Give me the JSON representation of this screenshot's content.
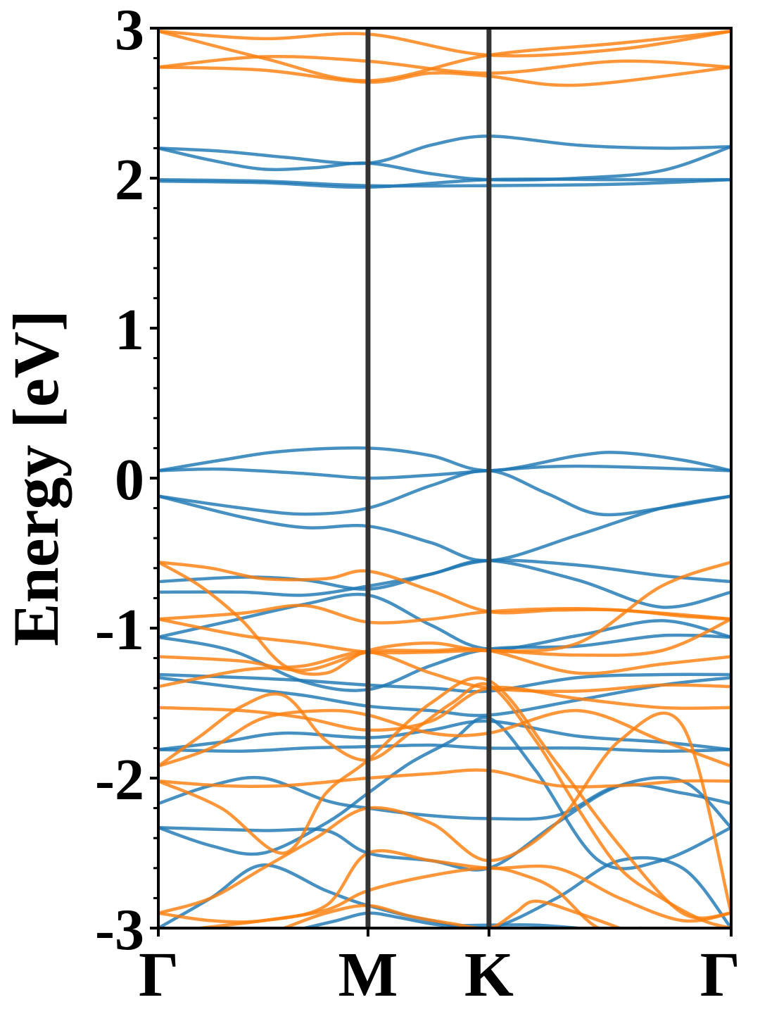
{
  "chart_data": {
    "type": "line",
    "title": "",
    "xlabel": "",
    "ylabel": "Energy [eV]",
    "ylim": [
      -3,
      3
    ],
    "y_ticks": [
      "-3",
      "-2",
      "-1",
      "0",
      "1",
      "2",
      "3"
    ],
    "y_tick_values": [
      -3,
      -2,
      -1,
      0,
      1,
      2,
      3
    ],
    "y_minor_step": 0.2,
    "x_ticks": [
      "Γ",
      "M",
      "K",
      "Γ"
    ],
    "x_tick_positions": [
      0,
      1,
      1.577,
      2.732
    ],
    "xlim": [
      0,
      2.732
    ],
    "grid": false,
    "legend": "none",
    "colors": {
      "spin_a": "#1f77b4",
      "spin_b": "#ff7f0e",
      "kline": "#333333"
    },
    "series": [
      {
        "color_key": "spin_a",
        "x": [
          0,
          0.3,
          0.6,
          1.0,
          1.3,
          1.577,
          2.0,
          2.4,
          2.732
        ],
        "y": [
          2.2,
          2.18,
          2.14,
          2.1,
          2.22,
          2.28,
          2.22,
          2.2,
          2.21
        ]
      },
      {
        "color_key": "spin_a",
        "x": [
          0,
          0.25,
          0.5,
          0.75,
          1.0,
          1.3,
          1.577,
          2.0,
          2.4,
          2.732
        ],
        "y": [
          2.2,
          2.12,
          2.06,
          2.07,
          2.1,
          2.03,
          1.99,
          2.0,
          2.05,
          2.21
        ]
      },
      {
        "color_key": "spin_a",
        "x": [
          0,
          0.5,
          1.0,
          1.577,
          2.2,
          2.732
        ],
        "y": [
          1.99,
          1.98,
          1.95,
          1.95,
          1.96,
          1.99
        ]
      },
      {
        "color_key": "spin_a",
        "x": [
          0,
          0.5,
          1.0,
          1.577,
          2.2,
          2.732
        ],
        "y": [
          1.98,
          1.97,
          1.94,
          1.99,
          1.99,
          1.99
        ]
      },
      {
        "color_key": "spin_a",
        "x": [
          0,
          0.3,
          0.6,
          1.0,
          1.3,
          1.577,
          2.0,
          2.2,
          2.5,
          2.732
        ],
        "y": [
          0.05,
          0.12,
          0.18,
          0.2,
          0.15,
          0.05,
          0.15,
          0.17,
          0.12,
          0.05
        ]
      },
      {
        "color_key": "spin_a",
        "x": [
          0,
          0.3,
          0.7,
          1.0,
          1.3,
          1.577,
          2.0,
          2.732
        ],
        "y": [
          0.05,
          0.06,
          0.03,
          0.0,
          0.02,
          0.05,
          0.08,
          0.05
        ]
      },
      {
        "color_key": "spin_a",
        "x": [
          0,
          0.4,
          0.7,
          1.0,
          1.3,
          1.577,
          1.85,
          2.1,
          2.4,
          2.732
        ],
        "y": [
          -0.12,
          -0.2,
          -0.24,
          -0.2,
          -0.05,
          0.05,
          -0.1,
          -0.24,
          -0.2,
          -0.12
        ]
      },
      {
        "color_key": "spin_a",
        "x": [
          0,
          0.4,
          0.7,
          1.0,
          1.3,
          1.577,
          2.0,
          2.4,
          2.732
        ],
        "y": [
          -0.12,
          -0.26,
          -0.33,
          -0.32,
          -0.43,
          -0.55,
          -0.38,
          -0.2,
          -0.12
        ]
      },
      {
        "color_key": "spin_a",
        "x": [
          0,
          0.4,
          0.7,
          1.0,
          1.3,
          1.577,
          2.0,
          2.4,
          2.732
        ],
        "y": [
          -0.69,
          -0.66,
          -0.68,
          -0.74,
          -0.64,
          -0.55,
          -0.58,
          -0.65,
          -0.69
        ]
      },
      {
        "color_key": "spin_a",
        "x": [
          0,
          0.4,
          0.7,
          1.0,
          1.3,
          1.577,
          2.0,
          2.4,
          2.732
        ],
        "y": [
          -0.76,
          -0.76,
          -0.78,
          -0.72,
          -0.64,
          -0.55,
          -0.68,
          -0.86,
          -0.76
        ]
      },
      {
        "color_key": "spin_a",
        "x": [
          0,
          0.35,
          0.7,
          1.0,
          1.3,
          1.577,
          2.0,
          2.4,
          2.732
        ],
        "y": [
          -1.06,
          -0.95,
          -0.84,
          -0.78,
          -0.98,
          -1.14,
          -1.05,
          -0.95,
          -1.06
        ]
      },
      {
        "color_key": "spin_a",
        "x": [
          0,
          0.35,
          0.7,
          1.0,
          1.3,
          1.577,
          2.0,
          2.4,
          2.732
        ],
        "y": [
          -1.06,
          -1.15,
          -1.36,
          -1.41,
          -1.25,
          -1.14,
          -1.12,
          -1.05,
          -1.06
        ]
      },
      {
        "color_key": "spin_a",
        "x": [
          0,
          0.4,
          0.7,
          1.0,
          1.3,
          1.577,
          2.0,
          2.4,
          2.732
        ],
        "y": [
          -1.31,
          -1.33,
          -1.35,
          -1.38,
          -1.4,
          -1.42,
          -1.33,
          -1.31,
          -1.31
        ]
      },
      {
        "color_key": "spin_a",
        "x": [
          0,
          0.4,
          0.7,
          1.0,
          1.3,
          1.577,
          2.0,
          2.4,
          2.732
        ],
        "y": [
          -1.33,
          -1.4,
          -1.45,
          -1.52,
          -1.55,
          -1.58,
          -1.48,
          -1.38,
          -1.33
        ]
      },
      {
        "color_key": "spin_a",
        "x": [
          0,
          0.3,
          0.6,
          1.0,
          1.3,
          1.577,
          2.0,
          2.4,
          2.732
        ],
        "y": [
          -1.81,
          -1.76,
          -1.7,
          -1.73,
          -1.68,
          -1.62,
          -1.72,
          -1.76,
          -1.81
        ]
      },
      {
        "color_key": "spin_a",
        "x": [
          0,
          0.4,
          0.7,
          1.0,
          1.3,
          1.577,
          2.0,
          2.4,
          2.732
        ],
        "y": [
          -1.81,
          -1.82,
          -1.8,
          -1.79,
          -1.78,
          -1.8,
          -1.8,
          -1.82,
          -1.81
        ]
      },
      {
        "color_key": "spin_a",
        "x": [
          0,
          0.25,
          0.5,
          0.8,
          1.0,
          1.3,
          1.577,
          1.9,
          2.2,
          2.5,
          2.732
        ],
        "y": [
          -2.17,
          -2.05,
          -2.0,
          -2.15,
          -2.2,
          -2.25,
          -2.27,
          -2.25,
          -2.05,
          -2.1,
          -2.17
        ]
      },
      {
        "color_key": "spin_a",
        "x": [
          0,
          0.5,
          0.8,
          1.0,
          1.3,
          1.577,
          1.9,
          2.2,
          2.5,
          2.732
        ],
        "y": [
          -2.33,
          -2.35,
          -2.35,
          -2.5,
          -2.55,
          -2.6,
          -2.3,
          -2.05,
          -2.02,
          -2.33
        ]
      },
      {
        "color_key": "spin_a",
        "x": [
          0,
          0.25,
          0.5,
          0.8,
          1.0,
          1.2,
          1.4,
          1.577,
          1.8,
          2.1,
          2.4,
          2.732
        ],
        "y": [
          -2.33,
          -2.45,
          -2.5,
          -2.3,
          -2.1,
          -1.9,
          -1.75,
          -1.6,
          -1.95,
          -2.55,
          -2.55,
          -2.33
        ]
      },
      {
        "color_key": "spin_a",
        "x": [
          0,
          0.25,
          0.5,
          0.8,
          1.0,
          1.3,
          1.577,
          1.9,
          2.2,
          2.5,
          2.732
        ],
        "y": [
          -3.0,
          -2.8,
          -2.58,
          -2.75,
          -2.85,
          -2.95,
          -3.0,
          -2.8,
          -2.55,
          -2.6,
          -3.0
        ]
      },
      {
        "color_key": "spin_a",
        "x": [
          0.7,
          0.85,
          1.0,
          1.15,
          1.35,
          1.577,
          1.8,
          2.0
        ],
        "y": [
          -3.0,
          -2.95,
          -2.9,
          -2.93,
          -2.98,
          -2.98,
          -2.98,
          -3.0
        ]
      },
      {
        "color_key": "spin_b",
        "x": [
          0,
          0.5,
          1.0,
          1.577,
          2.2,
          2.732
        ],
        "y": [
          2.98,
          2.93,
          2.96,
          2.82,
          2.86,
          2.98
        ]
      },
      {
        "color_key": "spin_b",
        "x": [
          0,
          0.5,
          1.0,
          1.577,
          2.2,
          2.732
        ],
        "y": [
          2.98,
          2.8,
          2.65,
          2.82,
          2.9,
          2.98
        ]
      },
      {
        "color_key": "spin_b",
        "x": [
          0,
          0.5,
          1.0,
          1.577,
          2.2,
          2.732
        ],
        "y": [
          2.74,
          2.81,
          2.78,
          2.7,
          2.78,
          2.74
        ]
      },
      {
        "color_key": "spin_b",
        "x": [
          0,
          0.5,
          1.0,
          1.3,
          1.577,
          2.0,
          2.732
        ],
        "y": [
          2.74,
          2.72,
          2.64,
          2.7,
          2.68,
          2.62,
          2.74
        ]
      },
      {
        "color_key": "spin_b",
        "x": [
          0,
          0.25,
          0.5,
          0.8,
          1.0,
          1.3,
          1.577,
          1.9,
          2.2,
          2.5,
          2.732
        ],
        "y": [
          -0.56,
          -0.6,
          -0.67,
          -0.67,
          -0.62,
          -0.75,
          -0.89,
          -0.88,
          -0.88,
          -0.92,
          -0.94
        ]
      },
      {
        "color_key": "spin_b",
        "x": [
          0,
          0.2,
          0.4,
          0.6,
          0.8,
          1.0,
          1.3,
          1.577,
          2.0,
          2.4,
          2.732
        ],
        "y": [
          -0.56,
          -0.72,
          -0.95,
          -1.25,
          -1.3,
          -1.15,
          -1.1,
          -1.15,
          -1.1,
          -0.72,
          -0.56
        ]
      },
      {
        "color_key": "spin_b",
        "x": [
          0,
          0.4,
          0.7,
          1.0,
          1.3,
          1.577,
          2.0,
          2.4,
          2.732
        ],
        "y": [
          -0.94,
          -0.9,
          -0.85,
          -0.96,
          -0.94,
          -0.89,
          -0.87,
          -0.9,
          -0.94
        ]
      },
      {
        "color_key": "spin_b",
        "x": [
          0,
          0.4,
          0.7,
          1.0,
          1.3,
          1.577,
          2.0,
          2.4,
          2.732
        ],
        "y": [
          -0.94,
          -1.05,
          -1.1,
          -1.16,
          -1.16,
          -1.15,
          -1.18,
          -1.15,
          -0.94
        ]
      },
      {
        "color_key": "spin_b",
        "x": [
          0,
          0.4,
          0.7,
          1.0,
          1.3,
          1.577,
          2.0,
          2.4,
          2.732
        ],
        "y": [
          -1.19,
          -1.22,
          -1.28,
          -1.16,
          -1.15,
          -1.15,
          -1.3,
          -1.24,
          -1.19
        ]
      },
      {
        "color_key": "spin_b",
        "x": [
          0,
          0.4,
          0.7,
          1.0,
          1.3,
          1.577,
          2.0,
          2.4,
          2.732
        ],
        "y": [
          -1.39,
          -1.28,
          -1.25,
          -1.16,
          -1.3,
          -1.4,
          -1.42,
          -1.38,
          -1.39
        ]
      },
      {
        "color_key": "spin_b",
        "x": [
          0,
          0.4,
          0.7,
          1.0,
          1.3,
          1.577,
          2.0,
          2.4,
          2.732
        ],
        "y": [
          -1.53,
          -1.55,
          -1.6,
          -1.68,
          -1.62,
          -1.4,
          -1.47,
          -1.53,
          -1.53
        ]
      },
      {
        "color_key": "spin_b",
        "x": [
          0,
          0.25,
          0.5,
          0.8,
          1.0,
          1.3,
          1.577,
          2.0,
          2.4,
          2.732
        ],
        "y": [
          -1.92,
          -1.8,
          -1.6,
          -1.55,
          -1.58,
          -1.7,
          -1.7,
          -1.55,
          -1.75,
          -1.92
        ]
      },
      {
        "color_key": "spin_b",
        "x": [
          0,
          0.3,
          0.6,
          1.0,
          1.3,
          1.577,
          1.9,
          2.2,
          2.5,
          2.732
        ],
        "y": [
          -2.02,
          -2.05,
          -2.05,
          -2.0,
          -1.97,
          -1.95,
          -2.05,
          -2.05,
          -2.02,
          -2.02
        ]
      },
      {
        "color_key": "spin_b",
        "x": [
          0,
          0.3,
          0.6,
          0.8,
          1.0,
          1.3,
          1.577,
          1.9,
          2.2,
          2.5,
          2.732
        ],
        "y": [
          -2.02,
          -2.2,
          -2.5,
          -2.1,
          -1.88,
          -1.5,
          -1.35,
          -1.9,
          -2.45,
          -2.9,
          -2.9
        ]
      },
      {
        "color_key": "spin_b",
        "x": [
          0,
          0.2,
          0.4,
          0.6,
          0.8,
          1.0,
          1.2,
          1.4,
          1.577,
          1.8,
          2.0,
          2.2,
          2.4,
          2.6,
          2.732
        ],
        "y": [
          -1.92,
          -1.72,
          -1.52,
          -1.45,
          -1.75,
          -1.88,
          -1.7,
          -1.5,
          -1.38,
          -1.75,
          -2.2,
          -2.6,
          -2.8,
          -2.95,
          -3.0
        ]
      },
      {
        "color_key": "spin_b",
        "x": [
          0,
          0.25,
          0.5,
          0.75,
          1.0,
          1.3,
          1.577,
          1.9,
          2.2,
          2.5,
          2.732
        ],
        "y": [
          -2.9,
          -2.8,
          -2.6,
          -2.4,
          -2.2,
          -2.3,
          -2.55,
          -2.3,
          -1.75,
          -1.65,
          -2.9
        ]
      },
      {
        "color_key": "spin_b",
        "x": [
          0,
          0.25,
          0.5,
          0.8,
          1.0,
          1.3,
          1.577,
          1.9,
          2.2,
          2.5,
          2.732
        ],
        "y": [
          -2.9,
          -2.95,
          -2.95,
          -2.85,
          -2.5,
          -2.55,
          -2.6,
          -2.6,
          -2.8,
          -2.95,
          -2.9
        ]
      },
      {
        "color_key": "spin_b",
        "x": [
          0.2,
          0.5,
          0.8,
          1.0,
          1.3,
          1.577,
          1.75,
          1.9,
          2.1,
          2.3
        ],
        "y": [
          -3.0,
          -2.95,
          -2.88,
          -2.75,
          -2.65,
          -2.6,
          -2.65,
          -2.75,
          -3.0,
          -3.0
        ]
      },
      {
        "color_key": "spin_b",
        "x": [
          0.6,
          0.8,
          1.0,
          1.2,
          1.4,
          1.577,
          1.7,
          1.8,
          2.0,
          2.2
        ],
        "y": [
          -3.0,
          -2.9,
          -2.85,
          -2.92,
          -2.97,
          -3.0,
          -2.9,
          -2.82,
          -2.9,
          -3.0
        ]
      }
    ]
  }
}
